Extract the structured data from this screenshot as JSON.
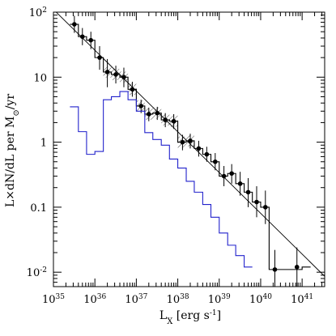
{
  "chart_data": {
    "type": "line",
    "title": "",
    "xlabel": "L_X [erg s^-1]",
    "ylabel": "L×dN/dL per M_⊙/yr",
    "x_scale": "log",
    "y_scale": "log",
    "xlim": [
      1e+35,
      3.5e+41
    ],
    "ylim": [
      0.006,
      100
    ],
    "x_ticks": [
      {
        "value": 1e+35,
        "mantissa": "10",
        "exp": "35"
      },
      {
        "value": 1e+36,
        "mantissa": "10",
        "exp": "36"
      },
      {
        "value": 1e+37,
        "mantissa": "10",
        "exp": "37"
      },
      {
        "value": 1e+38,
        "mantissa": "10",
        "exp": "38"
      },
      {
        "value": 1e+39,
        "mantissa": "10",
        "exp": "39"
      },
      {
        "value": 1e+40,
        "mantissa": "10",
        "exp": "40"
      },
      {
        "value": 1e+41,
        "mantissa": "10",
        "exp": "41"
      }
    ],
    "y_ticks": [
      {
        "value": 0.01,
        "mantissa": "10",
        "exp": "-2"
      },
      {
        "value": 0.1,
        "text": "0.1"
      },
      {
        "value": 1,
        "text": "1"
      },
      {
        "value": 10,
        "text": "10"
      },
      {
        "value": 100,
        "mantissa": "10",
        "exp": "2"
      }
    ],
    "series": [
      {
        "kind": "histogram",
        "color": "#000000",
        "bin_edges": [
          2.5e+35,
          4e+35,
          6.3e+35,
          1e+36,
          1.6e+36,
          2.5e+36,
          4e+36,
          6.3e+36,
          1e+37,
          1.6e+37,
          2.5e+37,
          4e+37,
          6.3e+37,
          1e+38,
          1.6e+38,
          2.5e+38,
          4e+38,
          6.3e+38,
          1e+39,
          1.6e+39,
          2.5e+39,
          4e+39,
          6.3e+39,
          1e+40,
          1.6e+40,
          2.5e+40,
          6.3e+40,
          1e+41,
          1.6e+41
        ],
        "values": [
          65,
          42,
          37,
          20,
          12,
          11,
          10,
          6.5,
          3.6,
          2.7,
          2.8,
          2.2,
          2.1,
          1.0,
          1.05,
          0.8,
          0.65,
          0.5,
          0.3,
          0.33,
          0.23,
          0.17,
          0.12,
          0.1,
          0.011,
          0.011,
          0.011,
          0.012
        ]
      },
      {
        "kind": "points",
        "color": "#000000",
        "points": [
          {
            "x": 3.2e+35,
            "y": 65,
            "lo": 48,
            "hi": 88
          },
          {
            "x": 5e+35,
            "y": 42,
            "lo": 31,
            "hi": 57
          },
          {
            "x": 8e+35,
            "y": 37,
            "lo": 27,
            "hi": 50
          },
          {
            "x": 1.3e+36,
            "y": 20,
            "lo": 13,
            "hi": 30
          },
          {
            "x": 2e+36,
            "y": 12,
            "lo": 7,
            "hi": 19
          },
          {
            "x": 3.2e+36,
            "y": 11,
            "lo": 8,
            "hi": 15
          },
          {
            "x": 5e+36,
            "y": 10,
            "lo": 7,
            "hi": 14
          },
          {
            "x": 8e+36,
            "y": 6.5,
            "lo": 5,
            "hi": 8.5
          },
          {
            "x": 1.3e+37,
            "y": 3.6,
            "lo": 2.8,
            "hi": 4.5
          },
          {
            "x": 2e+37,
            "y": 2.7,
            "lo": 2.1,
            "hi": 3.4
          },
          {
            "x": 3.2e+37,
            "y": 2.8,
            "lo": 2.2,
            "hi": 3.5
          },
          {
            "x": 5e+37,
            "y": 2.2,
            "lo": 1.7,
            "hi": 2.8
          },
          {
            "x": 8e+37,
            "y": 2.1,
            "lo": 1.6,
            "hi": 2.7
          },
          {
            "x": 1.3e+38,
            "y": 1.0,
            "lo": 0.75,
            "hi": 1.3
          },
          {
            "x": 2e+38,
            "y": 1.05,
            "lo": 0.8,
            "hi": 1.35
          },
          {
            "x": 3.2e+38,
            "y": 0.8,
            "lo": 0.6,
            "hi": 1.05
          },
          {
            "x": 5e+38,
            "y": 0.65,
            "lo": 0.5,
            "hi": 0.85
          },
          {
            "x": 8e+38,
            "y": 0.5,
            "lo": 0.37,
            "hi": 0.68
          },
          {
            "x": 1.3e+39,
            "y": 0.3,
            "lo": 0.21,
            "hi": 0.43
          },
          {
            "x": 2e+39,
            "y": 0.33,
            "lo": 0.23,
            "hi": 0.46
          },
          {
            "x": 3.2e+39,
            "y": 0.23,
            "lo": 0.15,
            "hi": 0.35
          },
          {
            "x": 5e+39,
            "y": 0.17,
            "lo": 0.1,
            "hi": 0.28
          },
          {
            "x": 8e+39,
            "y": 0.12,
            "lo": 0.07,
            "hi": 0.21
          },
          {
            "x": 1.3e+40,
            "y": 0.1,
            "lo": 0.055,
            "hi": 0.18
          },
          {
            "x": 2.2e+40,
            "y": 0.011,
            "lo": 0.006,
            "hi": 0.022
          },
          {
            "x": 7.5e+40,
            "y": 0.012,
            "lo": 0.006,
            "hi": 0.024
          }
        ]
      },
      {
        "kind": "histogram",
        "color": "#2222cc",
        "bin_edges": [
          2.5e+35,
          4e+35,
          6.3e+35,
          1e+36,
          1.6e+36,
          2.5e+36,
          4e+36,
          6.3e+36,
          1e+37,
          1.6e+37,
          2.5e+37,
          4e+37,
          6.3e+37,
          1e+38,
          1.6e+38,
          2.5e+38,
          4e+38,
          6.3e+38,
          1e+39,
          1.6e+39,
          2.5e+39,
          4e+39,
          6.3e+39
        ],
        "values": [
          3.5,
          1.45,
          0.65,
          0.72,
          4.5,
          5.0,
          6.0,
          4.5,
          3.0,
          1.4,
          1.1,
          0.9,
          0.55,
          0.4,
          0.25,
          0.17,
          0.11,
          0.07,
          0.04,
          0.026,
          0.018,
          0.012
        ]
      },
      {
        "kind": "fit-line",
        "color": "#000000",
        "points": [
          {
            "x": 1e+35,
            "y": 110
          },
          {
            "x": 3.5e+41,
            "y": 0.00865
          }
        ]
      }
    ],
    "hatched_band": {
      "x_range": [
        1.6e+36,
        2.5e+38
      ],
      "description": "hatched uncertainty band along the black histogram"
    },
    "grid": false,
    "legend": "none"
  }
}
